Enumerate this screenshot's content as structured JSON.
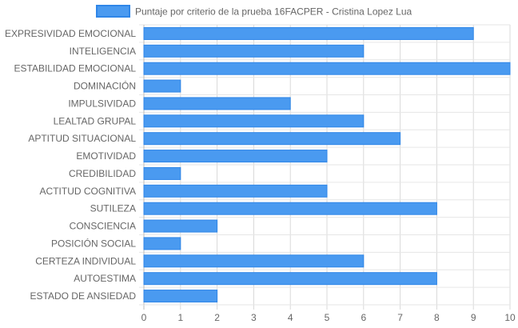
{
  "chart_data": {
    "type": "bar",
    "orientation": "horizontal",
    "title": "",
    "xlabel": "",
    "ylabel": "",
    "xlim": [
      0,
      10
    ],
    "x_ticks": [
      0,
      1,
      2,
      3,
      4,
      5,
      6,
      7,
      8,
      9,
      10
    ],
    "grid": true,
    "legend_position": "top-center",
    "categories": [
      "EXPRESIVIDAD EMOCIONAL",
      "INTELIGENCIA",
      "ESTABILIDAD EMOCIONAL",
      "DOMINACIÓN",
      "IMPULSIVIDAD",
      "LEALTAD GRUPAL",
      "APTITUD SITUACIONAL",
      "EMOTIVIDAD",
      "CREDIBILIDAD",
      "ACTITUD COGNITIVA",
      "SUTILEZA",
      "CONSCIENCIA",
      "POSICIÓN SOCIAL",
      "CERTEZA INDIVIDUAL",
      "AUTOESTIMA",
      "ESTADO DE ANSIEDAD"
    ],
    "series": [
      {
        "name": "Puntaje por criterio de la prueba 16FACPER - Cristina Lopez Lua",
        "values": [
          9,
          6,
          10,
          1,
          4,
          6,
          7,
          5,
          1,
          5,
          8,
          2,
          1,
          6,
          8,
          2
        ],
        "color": "#4a9af0",
        "border_color": "#2f86e8"
      }
    ]
  }
}
